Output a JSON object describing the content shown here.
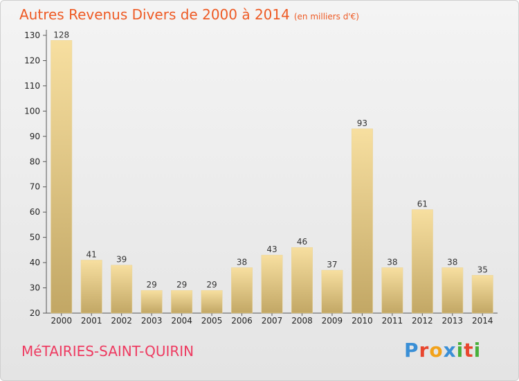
{
  "title": "Autres Revenus Divers de 2000 à 2014",
  "unit": "(en milliers d'€)",
  "commune": "MéTAIRIES-SAINT-QUIRIN",
  "brand": {
    "letters": [
      "P",
      "r",
      "o",
      "x",
      "i",
      "t",
      "i"
    ],
    "colors": [
      "#3a8fd6",
      "#e8462e",
      "#f2a21a",
      "#3a8fd6",
      "#48b03c",
      "#e8462e",
      "#48b03c"
    ]
  },
  "colors": {
    "title": "#ee5a24",
    "commune": "#ee3a60",
    "bar_top": "#f7dfa0",
    "bar_bottom": "#c2a765"
  },
  "chart_data": {
    "type": "bar",
    "categories": [
      "2000",
      "2001",
      "2002",
      "2003",
      "2004",
      "2005",
      "2006",
      "2007",
      "2008",
      "2009",
      "2010",
      "2011",
      "2012",
      "2013",
      "2014"
    ],
    "values": [
      128,
      41,
      39,
      29,
      29,
      29,
      38,
      43,
      46,
      37,
      93,
      38,
      61,
      38,
      35
    ],
    "ylim": [
      20,
      130
    ],
    "yticks": [
      20,
      30,
      40,
      50,
      60,
      70,
      80,
      90,
      100,
      110,
      120,
      130
    ],
    "grid": false,
    "data_labels": true
  }
}
